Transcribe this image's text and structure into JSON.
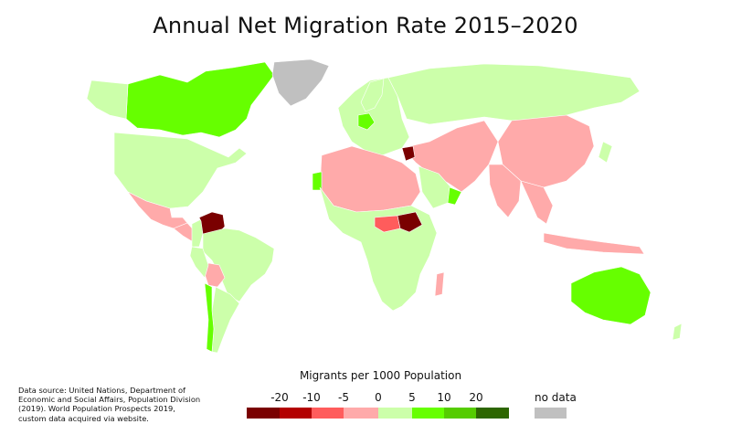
{
  "title": "Annual Net Migration Rate 2015–2020",
  "source": "Data source: United Nations, Department of Economic and Social Affairs, Population Division (2019). World Population Prospects 2019, custom data acquired via website.",
  "legend": {
    "title": "Migrants per 1000 Population",
    "ticks": [
      "-20",
      "-10",
      "-5",
      "0",
      "5",
      "10",
      "20"
    ],
    "classes": [
      {
        "color": "#7a0000"
      },
      {
        "color": "#b30000"
      },
      {
        "color": "#ff5c5c"
      },
      {
        "color": "#ffaaaa"
      },
      {
        "color": "#ccffaa"
      },
      {
        "color": "#66ff00"
      },
      {
        "color": "#55cc00"
      },
      {
        "color": "#2d6600"
      }
    ],
    "no_data_label": "no data",
    "no_data_color": "#c0c0c0"
  },
  "regions": [
    {
      "name": "Canada",
      "class": 5
    },
    {
      "name": "United States",
      "class": 4
    },
    {
      "name": "Greenland",
      "class": "nodata"
    },
    {
      "name": "Mexico",
      "class": 3
    },
    {
      "name": "Central America",
      "class": 3
    },
    {
      "name": "Venezuela",
      "class": 0
    },
    {
      "name": "Colombia",
      "class": 4
    },
    {
      "name": "Brazil",
      "class": 4
    },
    {
      "name": "Bolivia",
      "class": 3
    },
    {
      "name": "Chile",
      "class": 5
    },
    {
      "name": "Argentina",
      "class": 4
    },
    {
      "name": "Europe",
      "class": 4
    },
    {
      "name": "Russia",
      "class": 4
    },
    {
      "name": "Middle East",
      "class": 3
    },
    {
      "name": "Syria",
      "class": 0
    },
    {
      "name": "Oman",
      "class": 5
    },
    {
      "name": "North Africa",
      "class": 3
    },
    {
      "name": "South Sudan",
      "class": 0
    },
    {
      "name": "Central African Republic",
      "class": 2
    },
    {
      "name": "Africa",
      "class": 4
    },
    {
      "name": "China",
      "class": 3
    },
    {
      "name": "India",
      "class": 3
    },
    {
      "name": "Southeast Asia",
      "class": 3
    },
    {
      "name": "Indonesia",
      "class": 3
    },
    {
      "name": "Australia",
      "class": 5
    },
    {
      "name": "New Zealand",
      "class": 4
    },
    {
      "name": "Japan",
      "class": 4
    },
    {
      "name": "Madagascar",
      "class": 3
    }
  ]
}
